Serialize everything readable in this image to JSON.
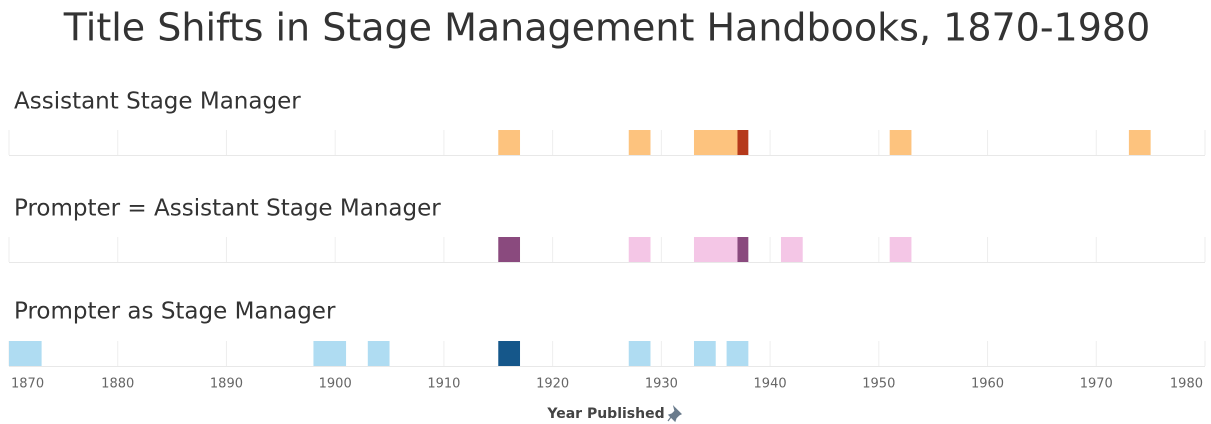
{
  "chart_data": {
    "type": "timeline",
    "title": "Title Shifts in Stage Management Handbooks, 1870-1980",
    "xlabel": "Year Published",
    "xlim": [
      1870,
      1980
    ],
    "xticks": [
      1870,
      1880,
      1890,
      1900,
      1910,
      1920,
      1930,
      1940,
      1950,
      1960,
      1970,
      1980
    ],
    "grid": true,
    "series": [
      {
        "name": "Assistant Stage Manager",
        "starts": [
          1915,
          1927,
          1933,
          1937,
          1951,
          1973
        ],
        "ends": [
          1917,
          1929,
          1937,
          1938,
          1953,
          1975
        ],
        "colors": [
          "#fdc37e",
          "#fdc37e",
          "#fdc37e",
          "#b5391b",
          "#fdc37e",
          "#fdc37e"
        ]
      },
      {
        "name": "Prompter = Assistant Stage Manager",
        "starts": [
          1915,
          1927,
          1933,
          1937,
          1941,
          1951
        ],
        "ends": [
          1917,
          1929,
          1937,
          1938,
          1943,
          1953
        ],
        "colors": [
          "#8a4a7e",
          "#f4c6e6",
          "#f4c6e6",
          "#8a4a7e",
          "#f4c6e6",
          "#f4c6e6"
        ]
      },
      {
        "name": "Prompter as Stage Manager",
        "starts": [
          1870,
          1898,
          1903,
          1915,
          1927,
          1933,
          1936
        ],
        "ends": [
          1873,
          1901,
          1905,
          1917,
          1929,
          1935,
          1938
        ],
        "colors": [
          "#afdcf2",
          "#afdcf2",
          "#afdcf2",
          "#15578a",
          "#afdcf2",
          "#afdcf2",
          "#afdcf2"
        ]
      }
    ]
  }
}
